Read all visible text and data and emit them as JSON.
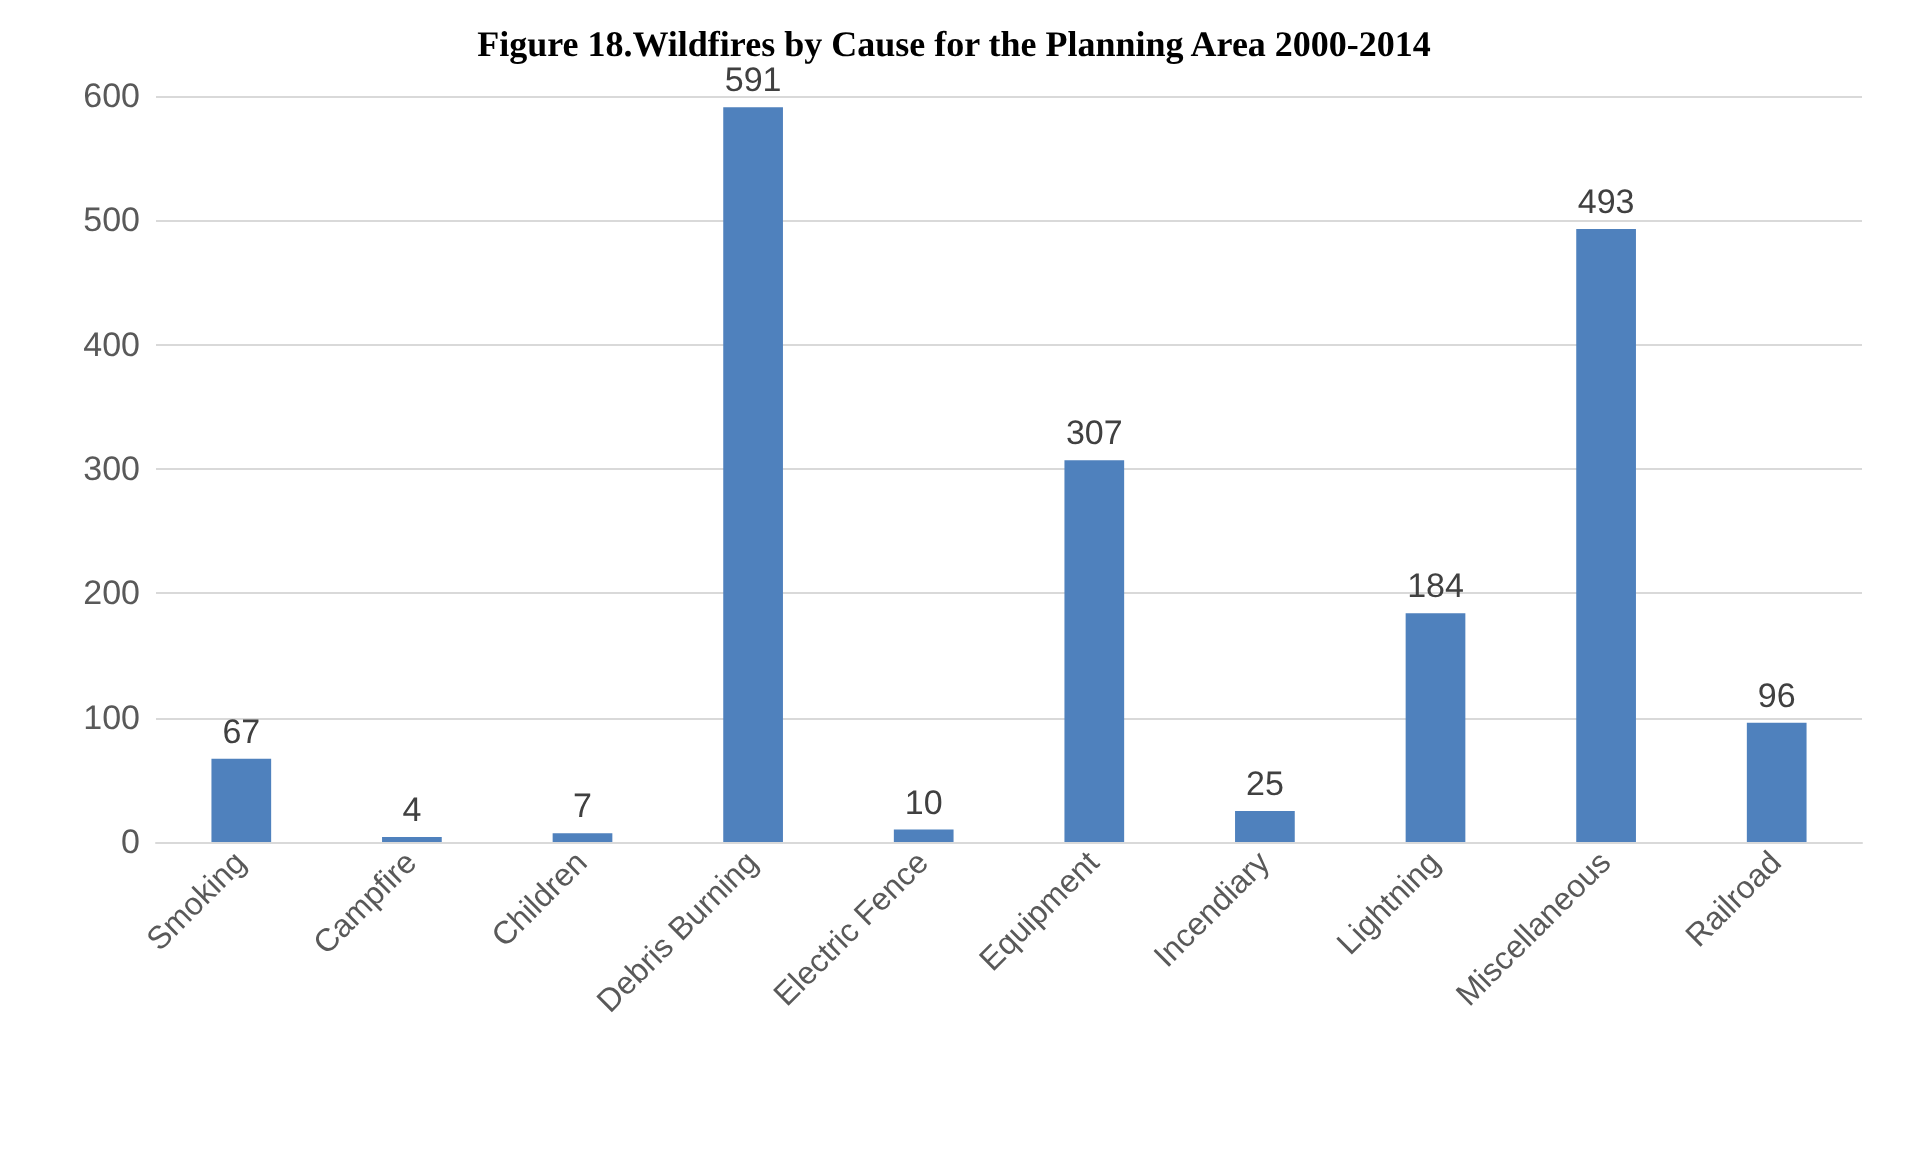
{
  "chart_data": {
    "type": "bar",
    "title": "Figure 18.Wildfires by Cause for the Planning Area 2000-2014",
    "categories": [
      "Smoking",
      "Campfire",
      "Children",
      "Debris Burning",
      "Electric Fence",
      "Equipment",
      "Incendiary",
      "Lightning",
      "Miscellaneous",
      "Railroad"
    ],
    "values": [
      67,
      4,
      7,
      591,
      10,
      307,
      25,
      184,
      493,
      96
    ],
    "color": "#4f81bd",
    "ylim": [
      0,
      600
    ],
    "yticks": [
      0,
      100,
      200,
      300,
      400,
      500,
      600
    ],
    "grid": "y",
    "data_labels": true
  }
}
